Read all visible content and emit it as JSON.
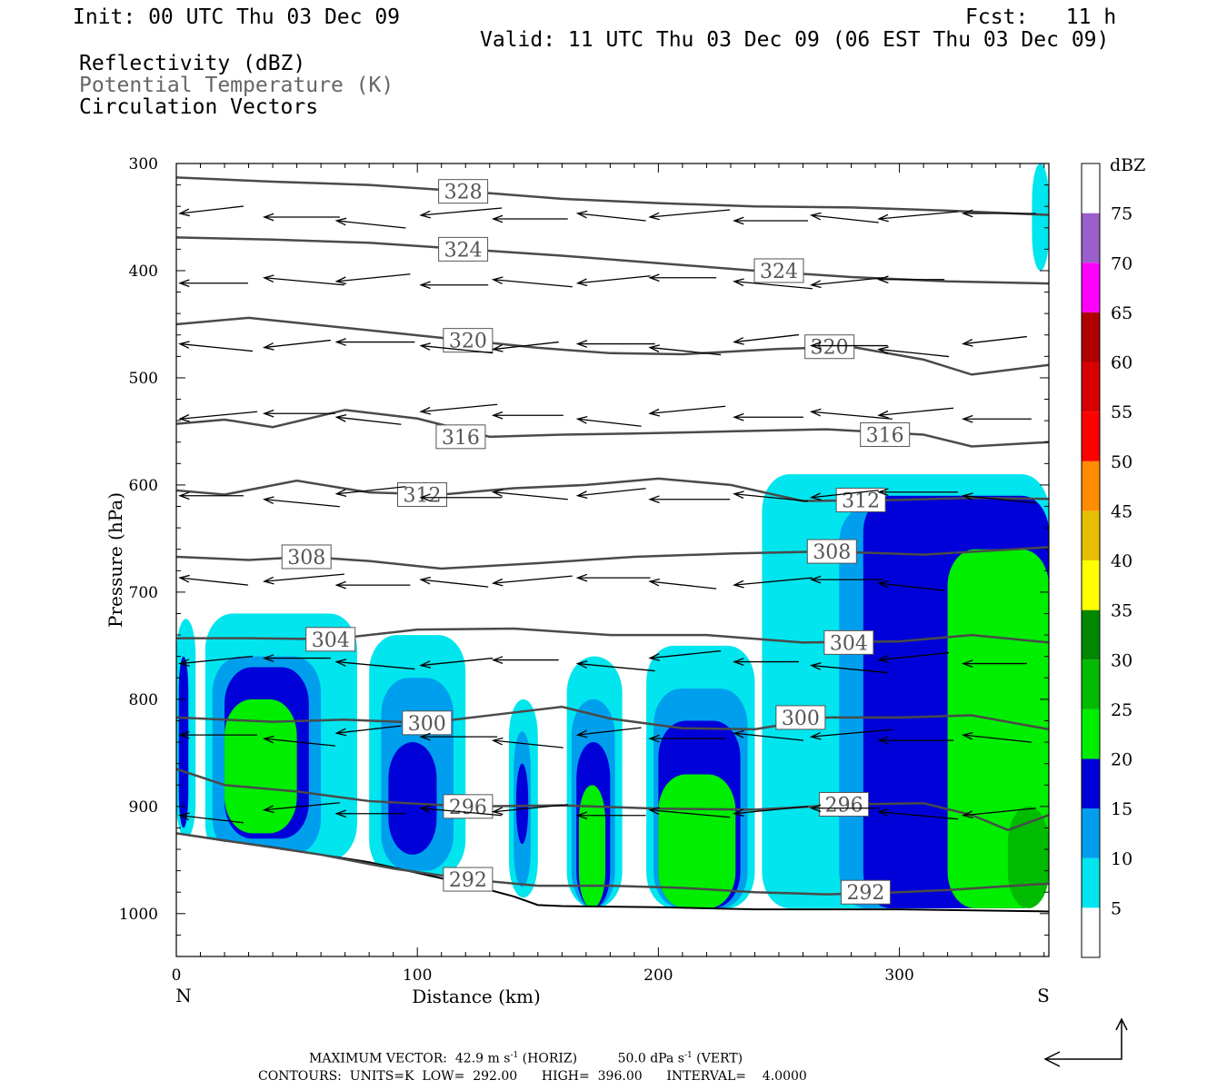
{
  "header": {
    "init": "Init: 00 UTC Thu 03 Dec 09",
    "fcst": "Fcst:   11 h",
    "valid": "Valid: 11 UTC Thu 03 Dec 09 (06 EST Thu 03 Dec 09)",
    "fields": [
      "Reflectivity (dBZ)",
      "Potential Temperature (K)",
      "Circulation Vectors"
    ]
  },
  "footer": {
    "max_vector_label": "MAXIMUM VECTOR:",
    "max_horiz": "42.9 m s",
    "horiz_exp": "-1",
    "horiz_unit": " (HORIZ)",
    "max_vert": "50.0 dPa s",
    "vert_exp": "-1",
    "vert_unit": " (VERT)",
    "contours": "CONTOURS:  UNITS=K  LOW=  292.00      HIGH=  396.00      INTERVAL=    4.0000"
  },
  "colors": {
    "contour": "#4a4a4a",
    "scale": [
      "#ffffff",
      "#00e5ee",
      "#009fee",
      "#0000d8",
      "#00ee00",
      "#00bb00",
      "#008800",
      "#ffff00",
      "#e8bf00",
      "#ff8c00",
      "#ff0000",
      "#d80000",
      "#b00000",
      "#ff00ff",
      "#9a5fc8",
      "#ffffff"
    ]
  },
  "chart_data": {
    "type": "cross-section",
    "xlabel": "Distance (km)",
    "ylabel": "Pressure (hPa)",
    "xlim": [
      0,
      362
    ],
    "ylim": [
      1040,
      300
    ],
    "x_ticks": [
      0,
      100,
      200,
      300
    ],
    "y_ticks": [
      300,
      400,
      500,
      600,
      700,
      800,
      900,
      1000
    ],
    "x_end_labels": [
      "N",
      "S"
    ],
    "colorbar": {
      "unit": "dBZ",
      "levels": [
        5,
        10,
        15,
        20,
        25,
        30,
        35,
        40,
        45,
        50,
        55,
        60,
        65,
        70,
        75
      ]
    },
    "theta_contours": [
      {
        "value": 328,
        "label_x": 119,
        "points": [
          [
            0,
            313
          ],
          [
            40,
            317
          ],
          [
            80,
            320
          ],
          [
            120,
            326
          ],
          [
            160,
            333
          ],
          [
            200,
            337
          ],
          [
            240,
            340
          ],
          [
            280,
            341
          ],
          [
            320,
            344
          ],
          [
            362,
            348
          ]
        ]
      },
      {
        "value": 324,
        "label_x": 119,
        "points": [
          [
            0,
            369
          ],
          [
            40,
            371
          ],
          [
            80,
            374
          ],
          [
            120,
            380
          ],
          [
            160,
            386
          ],
          [
            200,
            393
          ],
          [
            240,
            400
          ],
          [
            280,
            406
          ],
          [
            320,
            410
          ],
          [
            362,
            412
          ]
        ]
      },
      {
        "value": 324,
        "label_x": 250,
        "points": []
      },
      {
        "value": 320,
        "label_x": 121,
        "points": [
          [
            0,
            450
          ],
          [
            30,
            444
          ],
          [
            60,
            451
          ],
          [
            90,
            458
          ],
          [
            120,
            465
          ],
          [
            150,
            472
          ],
          [
            180,
            477
          ],
          [
            210,
            478
          ],
          [
            250,
            473
          ],
          [
            280,
            471
          ],
          [
            310,
            483
          ],
          [
            330,
            497
          ],
          [
            362,
            488
          ]
        ]
      },
      {
        "value": 320,
        "label_x": 271,
        "points": []
      },
      {
        "value": 316,
        "label_x": 118,
        "points": [
          [
            0,
            543
          ],
          [
            20,
            539
          ],
          [
            40,
            546
          ],
          [
            70,
            530
          ],
          [
            100,
            538
          ],
          [
            130,
            555
          ],
          [
            160,
            553
          ],
          [
            190,
            552
          ],
          [
            230,
            550
          ],
          [
            270,
            548
          ],
          [
            310,
            553
          ],
          [
            330,
            564
          ],
          [
            362,
            560
          ]
        ]
      },
      {
        "value": 316,
        "label_x": 294,
        "points": []
      },
      {
        "value": 312,
        "label_x": 102,
        "points": [
          [
            0,
            605
          ],
          [
            20,
            609
          ],
          [
            50,
            596
          ],
          [
            80,
            607
          ],
          [
            110,
            609
          ],
          [
            140,
            603
          ],
          [
            170,
            600
          ],
          [
            200,
            594
          ],
          [
            230,
            600
          ],
          [
            260,
            615
          ],
          [
            300,
            614
          ],
          [
            330,
            612
          ],
          [
            362,
            613
          ]
        ]
      },
      {
        "value": 312,
        "label_x": 284,
        "points": []
      },
      {
        "value": 308,
        "label_x": 54,
        "points": [
          [
            0,
            667
          ],
          [
            30,
            670
          ],
          [
            54,
            667
          ],
          [
            80,
            671
          ],
          [
            110,
            678
          ],
          [
            150,
            673
          ],
          [
            190,
            667
          ],
          [
            230,
            664
          ],
          [
            270,
            662
          ],
          [
            310,
            665
          ],
          [
            362,
            658
          ]
        ]
      },
      {
        "value": 308,
        "label_x": 272,
        "points": []
      },
      {
        "value": 304,
        "label_x": 64,
        "points": [
          [
            0,
            743
          ],
          [
            30,
            743
          ],
          [
            64,
            744
          ],
          [
            100,
            735
          ],
          [
            140,
            734
          ],
          [
            180,
            740
          ],
          [
            220,
            740
          ],
          [
            260,
            747
          ],
          [
            300,
            746
          ],
          [
            330,
            740
          ],
          [
            362,
            747
          ]
        ]
      },
      {
        "value": 304,
        "label_x": 279,
        "points": []
      },
      {
        "value": 300,
        "label_x": 104,
        "points": [
          [
            0,
            817
          ],
          [
            40,
            821
          ],
          [
            70,
            819
          ],
          [
            104,
            822
          ],
          [
            130,
            815
          ],
          [
            160,
            807
          ],
          [
            180,
            818
          ],
          [
            210,
            827
          ],
          [
            240,
            828
          ],
          [
            270,
            817
          ],
          [
            300,
            817
          ],
          [
            330,
            815
          ],
          [
            362,
            828
          ]
        ]
      },
      {
        "value": 300,
        "label_x": 259,
        "points": []
      },
      {
        "value": 296,
        "label_x": 121,
        "points": [
          [
            0,
            865
          ],
          [
            20,
            880
          ],
          [
            50,
            886
          ],
          [
            80,
            895
          ],
          [
            121,
            900
          ],
          [
            160,
            899
          ],
          [
            200,
            902
          ],
          [
            240,
            903
          ],
          [
            280,
            898
          ],
          [
            310,
            897
          ],
          [
            330,
            908
          ],
          [
            345,
            922
          ],
          [
            362,
            908
          ]
        ]
      },
      {
        "value": 296,
        "label_x": 277,
        "points": []
      },
      {
        "value": 292,
        "label_x": 121,
        "points": [
          [
            0,
            925
          ],
          [
            30,
            935
          ],
          [
            60,
            945
          ],
          [
            90,
            958
          ],
          [
            121,
            968
          ],
          [
            150,
            974
          ],
          [
            180,
            974
          ],
          [
            210,
            976
          ],
          [
            240,
            980
          ],
          [
            270,
            982
          ],
          [
            300,
            980
          ],
          [
            320,
            978
          ],
          [
            340,
            975
          ],
          [
            362,
            972
          ]
        ]
      },
      {
        "value": 292,
        "label_x": 286,
        "points": []
      }
    ],
    "terrain": [
      [
        0,
        925
      ],
      [
        20,
        932
      ],
      [
        40,
        938
      ],
      [
        60,
        945
      ],
      [
        80,
        952
      ],
      [
        100,
        962
      ],
      [
        120,
        972
      ],
      [
        140,
        984
      ],
      [
        150,
        992
      ],
      [
        160,
        993
      ],
      [
        200,
        994
      ],
      [
        240,
        996
      ],
      [
        300,
        996
      ],
      [
        362,
        998
      ]
    ],
    "reflectivity_cells": [
      {
        "x": [
          0,
          8
        ],
        "p": [
          725,
          930
        ],
        "dbz": 5
      },
      {
        "x": [
          1,
          5
        ],
        "p": [
          760,
          920
        ],
        "dbz": 15
      },
      {
        "x": [
          12,
          75
        ],
        "p": [
          720,
          950
        ],
        "dbz": 5
      },
      {
        "x": [
          15,
          60
        ],
        "p": [
          760,
          945
        ],
        "dbz": 10
      },
      {
        "x": [
          20,
          55
        ],
        "p": [
          770,
          930
        ],
        "dbz": 15
      },
      {
        "x": [
          20,
          50
        ],
        "p": [
          800,
          925
        ],
        "dbz": 20
      },
      {
        "x": [
          80,
          120
        ],
        "p": [
          740,
          965
        ],
        "dbz": 5
      },
      {
        "x": [
          85,
          115
        ],
        "p": [
          780,
          960
        ],
        "dbz": 10
      },
      {
        "x": [
          88,
          108
        ],
        "p": [
          840,
          945
        ],
        "dbz": 15
      },
      {
        "x": [
          138,
          150
        ],
        "p": [
          800,
          985
        ],
        "dbz": 5
      },
      {
        "x": [
          140,
          147
        ],
        "p": [
          830,
          975
        ],
        "dbz": 10
      },
      {
        "x": [
          141,
          146
        ],
        "p": [
          860,
          935
        ],
        "dbz": 15
      },
      {
        "x": [
          162,
          185
        ],
        "p": [
          760,
          995
        ],
        "dbz": 5
      },
      {
        "x": [
          164,
          182
        ],
        "p": [
          800,
          995
        ],
        "dbz": 10
      },
      {
        "x": [
          166,
          180
        ],
        "p": [
          840,
          995
        ],
        "dbz": 15
      },
      {
        "x": [
          167,
          178
        ],
        "p": [
          880,
          995
        ],
        "dbz": 20
      },
      {
        "x": [
          195,
          240
        ],
        "p": [
          750,
          995
        ],
        "dbz": 5
      },
      {
        "x": [
          198,
          237
        ],
        "p": [
          790,
          995
        ],
        "dbz": 10
      },
      {
        "x": [
          200,
          234
        ],
        "p": [
          820,
          995
        ],
        "dbz": 15
      },
      {
        "x": [
          200,
          232
        ],
        "p": [
          870,
          995
        ],
        "dbz": 20
      },
      {
        "x": [
          243,
          362
        ],
        "p": [
          590,
          995
        ],
        "dbz": 5
      },
      {
        "x": [
          275,
          362
        ],
        "p": [
          620,
          995
        ],
        "dbz": 10
      },
      {
        "x": [
          285,
          362
        ],
        "p": [
          610,
          995
        ],
        "dbz": 15
      },
      {
        "x": [
          320,
          362
        ],
        "p": [
          660,
          995
        ],
        "dbz": 20
      },
      {
        "x": [
          345,
          362
        ],
        "p": [
          900,
          995
        ],
        "dbz": 25
      },
      {
        "x": [
          355,
          362
        ],
        "p": [
          300,
          400
        ],
        "dbz": 5
      }
    ],
    "vector_rows": [
      {
        "p": 350,
        "x": [
          0,
          35,
          65,
          100,
          130,
          165,
          195,
          230,
          262,
          290,
          325,
          350
        ]
      },
      {
        "p": 410,
        "x": [
          0,
          35,
          65,
          100,
          130,
          165,
          195,
          230,
          262,
          290,
          325,
          350
        ]
      },
      {
        "p": 470,
        "x": [
          0,
          35,
          65,
          100,
          130,
          165,
          195,
          230,
          262,
          290,
          325,
          350
        ]
      },
      {
        "p": 535,
        "x": [
          0,
          35,
          65,
          100,
          130,
          165,
          195,
          230,
          262,
          290,
          325,
          350
        ]
      },
      {
        "p": 610,
        "x": [
          0,
          35,
          65,
          100,
          130,
          165,
          195,
          230,
          262,
          290,
          325,
          350
        ]
      },
      {
        "p": 690,
        "x": [
          0,
          35,
          65,
          100,
          130,
          165,
          195,
          230,
          262,
          290,
          325,
          350
        ]
      },
      {
        "p": 765,
        "x": [
          0,
          35,
          65,
          100,
          130,
          165,
          195,
          230,
          262,
          290,
          325,
          350
        ]
      },
      {
        "p": 835,
        "x": [
          0,
          35,
          65,
          100,
          130,
          165,
          195,
          230,
          262,
          290,
          325,
          350
        ]
      },
      {
        "p": 905,
        "x": [
          0,
          35,
          65,
          100,
          130,
          165,
          195,
          230,
          262,
          290,
          325,
          350
        ]
      }
    ]
  }
}
